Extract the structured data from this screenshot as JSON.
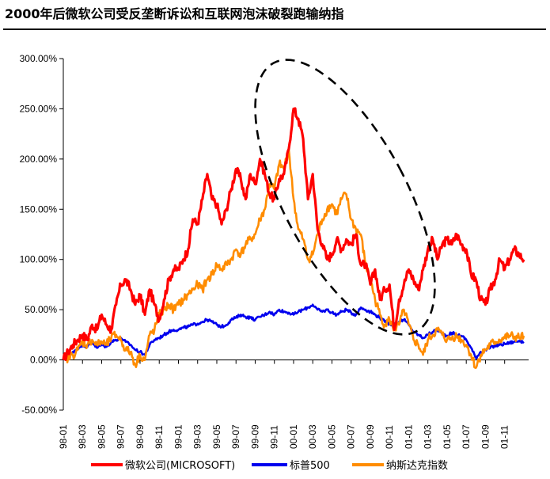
{
  "title": "2000年后微软公司受反垄断诉讼和互联网泡沫破裂跑输纳指",
  "chart_data": {
    "type": "line",
    "title": "2000年后微软公司受反垄断诉讼和互联网泡沫破裂跑输纳指",
    "xlabel": "",
    "ylabel": "",
    "ylim": [
      -50,
      300
    ],
    "yticks": [
      -50,
      0,
      50,
      100,
      150,
      200,
      250,
      300
    ],
    "ytick_labels": [
      "-50.00%",
      "0.00%",
      "50.00%",
      "100.00%",
      "150.00%",
      "200.00%",
      "250.00%",
      "300.00%"
    ],
    "x_tick_labels": [
      "98-01",
      "98-03",
      "98-05",
      "98-07",
      "98-09",
      "98-11",
      "99-01",
      "99-03",
      "99-05",
      "99-07",
      "99-09",
      "99-11",
      "00-01",
      "00-03",
      "00-05",
      "00-07",
      "00-09",
      "00-11",
      "01-01",
      "01-03",
      "01-05",
      "01-07",
      "01-09",
      "01-11"
    ],
    "x_unit": "months since 98-01",
    "xlim": [
      0,
      48.5
    ],
    "grid": false,
    "legend_position": "bottom",
    "annotation": "dashed ellipse highlighting 00-01 to 01-01 decline",
    "series": [
      {
        "name": "微软公司(MICROSOFT)",
        "color": "#ff0000",
        "x": [
          0,
          0.5,
          1,
          1.5,
          2,
          2.5,
          3,
          3.5,
          4,
          4.5,
          5,
          5.5,
          6,
          6.5,
          7,
          7.5,
          8,
          8.5,
          9,
          9.5,
          10,
          10.5,
          11,
          11.5,
          12,
          12.5,
          13,
          13.5,
          14,
          14.5,
          15,
          15.5,
          16,
          16.5,
          17,
          17.5,
          18,
          18.5,
          19,
          19.5,
          20,
          20.5,
          21,
          21.5,
          22,
          22.5,
          23,
          23.5,
          24,
          24.5,
          25,
          25.5,
          26,
          26.5,
          27,
          27.5,
          28,
          28.5,
          29,
          29.5,
          30,
          30.5,
          31,
          31.5,
          32,
          32.5,
          33,
          33.5,
          34,
          34.5,
          35,
          35.5,
          36,
          36.5,
          37,
          37.5,
          38,
          38.5,
          39,
          39.5,
          40,
          40.5,
          41,
          41.5,
          42,
          42.5,
          43,
          43.5,
          44,
          44.5,
          45,
          45.5,
          46,
          46.5,
          47,
          47.5,
          48
        ],
        "values": [
          0,
          8,
          15,
          20,
          25,
          20,
          35,
          30,
          45,
          35,
          30,
          55,
          75,
          80,
          70,
          55,
          65,
          45,
          70,
          55,
          40,
          60,
          80,
          90,
          90,
          100,
          110,
          140,
          135,
          160,
          185,
          160,
          155,
          135,
          150,
          170,
          190,
          180,
          160,
          185,
          175,
          200,
          185,
          165,
          160,
          180,
          185,
          210,
          250,
          240,
          220,
          160,
          185,
          130,
          115,
          100,
          105,
          120,
          110,
          120,
          115,
          125,
          95,
          95,
          75,
          90,
          60,
          70,
          75,
          30,
          60,
          75,
          90,
          80,
          70,
          90,
          110,
          120,
          100,
          115,
          120,
          115,
          125,
          115,
          110,
          85,
          80,
          60,
          55,
          70,
          80,
          100,
          90,
          100,
          110,
          105,
          100
        ]
      },
      {
        "name": "标普500",
        "color": "#0000ee",
        "x": [
          0,
          0.5,
          1,
          1.5,
          2,
          2.5,
          3,
          3.5,
          4,
          4.5,
          5,
          5.5,
          6,
          6.5,
          7,
          7.5,
          8,
          8.5,
          9,
          9.5,
          10,
          10.5,
          11,
          11.5,
          12,
          12.5,
          13,
          13.5,
          14,
          14.5,
          15,
          15.5,
          16,
          16.5,
          17,
          17.5,
          18,
          18.5,
          19,
          19.5,
          20,
          20.5,
          21,
          21.5,
          22,
          22.5,
          23,
          23.5,
          24,
          24.5,
          25,
          25.5,
          26,
          26.5,
          27,
          27.5,
          28,
          28.5,
          29,
          29.5,
          30,
          30.5,
          31,
          31.5,
          32,
          32.5,
          33,
          33.5,
          34,
          34.5,
          35,
          35.5,
          36,
          36.5,
          37,
          37.5,
          38,
          38.5,
          39,
          39.5,
          40,
          40.5,
          41,
          41.5,
          42,
          42.5,
          43,
          43.5,
          44,
          44.5,
          45,
          45.5,
          46,
          46.5,
          47,
          47.5,
          48
        ],
        "values": [
          0,
          3,
          8,
          12,
          15,
          13,
          18,
          12,
          15,
          13,
          18,
          20,
          22,
          18,
          15,
          10,
          8,
          5,
          15,
          20,
          22,
          25,
          28,
          30,
          30,
          32,
          33,
          35,
          36,
          38,
          40,
          38,
          35,
          33,
          35,
          40,
          42,
          45,
          43,
          42,
          40,
          43,
          45,
          48,
          45,
          50,
          48,
          47,
          45,
          48,
          50,
          52,
          55,
          50,
          48,
          50,
          47,
          45,
          48,
          50,
          47,
          45,
          52,
          50,
          48,
          45,
          42,
          38,
          36,
          35,
          38,
          40,
          35,
          28,
          25,
          22,
          25,
          28,
          30,
          26,
          24,
          27,
          25,
          24,
          20,
          12,
          2,
          8,
          10,
          12,
          14,
          15,
          16,
          17,
          18,
          19,
          18
        ]
      },
      {
        "name": "纳斯达克指数",
        "color": "#ff8c00",
        "x": [
          0,
          0.5,
          1,
          1.5,
          2,
          2.5,
          3,
          3.5,
          4,
          4.5,
          5,
          5.5,
          6,
          6.5,
          7,
          7.5,
          8,
          8.5,
          9,
          9.5,
          10,
          10.5,
          11,
          11.5,
          12,
          12.5,
          13,
          13.5,
          14,
          14.5,
          15,
          15.5,
          16,
          16.5,
          17,
          17.5,
          18,
          18.5,
          19,
          19.5,
          20,
          20.5,
          21,
          21.5,
          22,
          22.5,
          23,
          23.5,
          24,
          24.5,
          25,
          25.5,
          26,
          26.5,
          27,
          27.5,
          28,
          28.5,
          29,
          29.5,
          30,
          30.5,
          31,
          31.5,
          32,
          32.5,
          33,
          33.5,
          34,
          34.5,
          35,
          35.5,
          36,
          36.5,
          37,
          37.5,
          38,
          38.5,
          39,
          39.5,
          40,
          40.5,
          41,
          41.5,
          42,
          42.5,
          43,
          43.5,
          44,
          44.5,
          45,
          45.5,
          46,
          46.5,
          47,
          47.5,
          48
        ],
        "values": [
          0,
          2,
          5,
          10,
          18,
          15,
          20,
          15,
          18,
          15,
          22,
          25,
          20,
          10,
          8,
          -5,
          5,
          0,
          25,
          30,
          45,
          50,
          55,
          50,
          55,
          60,
          65,
          70,
          75,
          70,
          80,
          85,
          95,
          90,
          95,
          100,
          110,
          105,
          115,
          120,
          125,
          140,
          150,
          175,
          170,
          195,
          190,
          210,
          160,
          130,
          120,
          100,
          105,
          125,
          140,
          150,
          155,
          145,
          160,
          165,
          140,
          130,
          125,
          95,
          80,
          60,
          45,
          35,
          40,
          30,
          35,
          50,
          35,
          20,
          15,
          5,
          20,
          25,
          30,
          25,
          20,
          22,
          24,
          20,
          15,
          5,
          -8,
          5,
          10,
          15,
          18,
          20,
          22,
          24,
          23,
          22,
          24
        ]
      }
    ]
  }
}
